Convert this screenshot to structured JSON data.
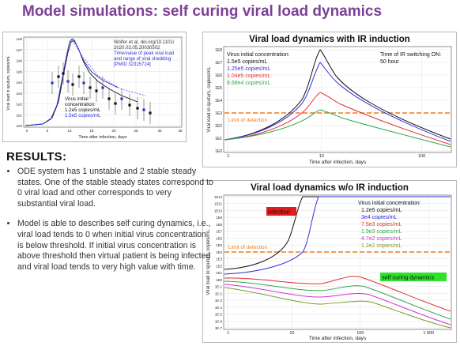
{
  "slide": {
    "title": "Model simulations: self curing viral load dynamics"
  },
  "chart_small": {
    "citation": [
      "Wolfer et al, doi.org/10.1101/",
      "2020.03.05.20030502"
    ],
    "note": [
      "Time/value of peak viral load",
      "and range of viral shedding",
      "[PMID 32315724]"
    ],
    "legend_title": [
      "Virus initial",
      "concentration:"
    ],
    "legend_items": [
      "1.2e5 copies/mL",
      "1.5e5 copies/mL"
    ],
    "ylabel": "Viral load in sputum, copies/mL",
    "xlabel": "Time after infection, days",
    "yticks": [
      "1e8",
      "1e7",
      "1e6",
      "1e5",
      "1e4",
      "1e3",
      "1e2",
      "1e1",
      "1e0"
    ],
    "xticks": [
      "0",
      "5",
      "10",
      "15",
      "20",
      "25",
      "30",
      "35"
    ]
  },
  "chart_top": {
    "title": "Viral load dynamics with IR induction",
    "legend_title": "Virus initial concentration:",
    "legend_items": [
      "1.5e5 copies/mL",
      "1.25e5 copies/mL",
      "1.04e5 copies/mL",
      "8.68e4 copies/mL"
    ],
    "switch_label": [
      "Time of IR switching ON:",
      "50 hour"
    ],
    "lod_label": "Limit of detection",
    "ylabel": "Viral load in sputum, copies/mL",
    "xlabel": "Time after infection, days",
    "yticks": [
      "1E8",
      "1E7",
      "1E6",
      "1E5",
      "1E4",
      "1E3",
      "1E2",
      "1E1",
      "1E0"
    ],
    "xticks": [
      "1",
      "10",
      "100"
    ]
  },
  "chart_bottom": {
    "title": "Viral load dynamics w/o IR induction",
    "legend_title": "Virus initial concentration:",
    "legend_items": [
      "1.2e5 copies/mL",
      "3e4 copies/mL",
      "7.5e3 copies/mL",
      "1.9e3 copies/mL",
      "4.7e2 copies/mL",
      "1.2e2 copies/mL"
    ],
    "infection_label": "infection",
    "self_cure_label": "self curing dynamics",
    "lod_label": "Limit of detection",
    "ylabel": "Viral load in sputum, copies/mL",
    "xlabel": "Time after infection, days",
    "yticks": [
      "1E12",
      "1E11",
      "1E10",
      "1E9",
      "1E8",
      "1E7",
      "1E6",
      "1E5",
      "1E4",
      "1E3",
      "1E2",
      "1E1",
      "1E0",
      "1E-1",
      "1E-2",
      "1E-3",
      "1E-4",
      "1E-5",
      "1E-6",
      "1E-7"
    ],
    "xticks": [
      "1",
      "10",
      "100",
      "1 000"
    ]
  },
  "results": {
    "heading": "RESULTS:",
    "bullets": [
      "ODE system has 1 unstable and 2 stable steady states. One of the stable steady states correspond to 0 viral load and other corresponds to very substantial viral load.",
      "Model is able to describes self curing dynamics, i.e., viral load tends to 0 when initial virus concentration is below threshold. If initial virus concentration is above threshold then virtual patient is being infected and viral load tends to very high value with time."
    ]
  },
  "colors": {
    "title": "#7e3f97",
    "black_series": "#111111",
    "blue_series": "#2f2fd8",
    "red_series": "#e03030",
    "green_series": "#2ea84a",
    "magenta_series": "#d62fd6",
    "olive_series": "#7a9a2a",
    "lod_line": "#f07a1a",
    "infection_badge": "#e31b1b",
    "cure_badge": "#2fe02f"
  }
}
